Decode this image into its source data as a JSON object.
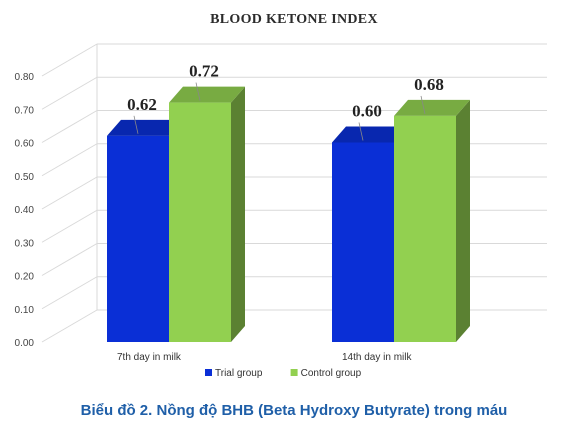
{
  "chart_data": {
    "type": "bar",
    "title": "BLOOD KETONE INDEX",
    "categories": [
      "7th day in milk",
      "14th  day in milk"
    ],
    "series": [
      {
        "name": "Trial group",
        "values": [
          0.62,
          0.6
        ],
        "color": "#0a2fd6"
      },
      {
        "name": "Control group",
        "values": [
          0.72,
          0.68
        ],
        "color": "#92d050"
      }
    ],
    "data_labels": [
      [
        "0.62",
        "0.60"
      ],
      [
        "0.72",
        "0.68"
      ]
    ],
    "ylim": [
      0,
      0.8
    ],
    "yticks": [
      "0.00",
      "0.10",
      "0.20",
      "0.30",
      "0.40",
      "0.50",
      "0.60",
      "0.70",
      "0.80"
    ],
    "grid": true,
    "style": "3d",
    "legend_placement": "bottom"
  },
  "caption": "Biểu đồ 2. Nồng độ BHB (Beta Hydroxy Butyrate) trong máu"
}
